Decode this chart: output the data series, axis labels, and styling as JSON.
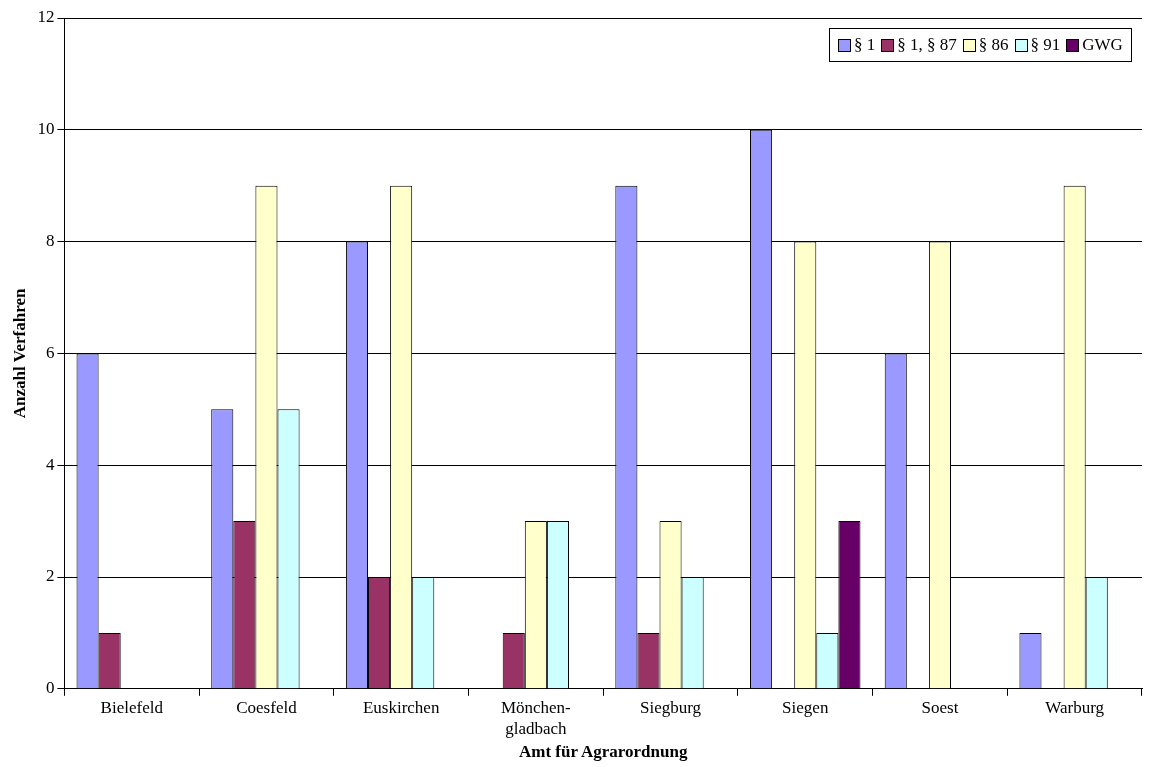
{
  "chart_data": {
    "type": "bar",
    "xlabel": "Amt für Agrarordnung",
    "ylabel": "Anzahl Verfahren",
    "categories": [
      "Bielefeld",
      "Coesfeld",
      "Euskirchen",
      "Mönchen-\ngladbach",
      "Siegburg",
      "Siegen",
      "Soest",
      "Warburg"
    ],
    "series": [
      {
        "name": "§ 1",
        "color": "#9999ff",
        "values": [
          6,
          5,
          8,
          null,
          9,
          10,
          6,
          1
        ]
      },
      {
        "name": "§ 1, § 87",
        "color": "#993366",
        "values": [
          1,
          3,
          2,
          1,
          1,
          null,
          null,
          null
        ]
      },
      {
        "name": "§ 86",
        "color": "#ffffcc",
        "values": [
          null,
          9,
          9,
          3,
          3,
          8,
          8,
          9
        ]
      },
      {
        "name": "§ 91",
        "color": "#ccffff",
        "values": [
          null,
          5,
          2,
          3,
          2,
          1,
          null,
          2
        ]
      },
      {
        "name": "GWG",
        "color": "#660066",
        "values": [
          null,
          null,
          null,
          null,
          null,
          3,
          null,
          null
        ]
      }
    ],
    "ylim": [
      0,
      12
    ],
    "yticks": [
      0,
      2,
      4,
      6,
      8,
      10,
      12
    ],
    "grid": "y",
    "legend": "top right"
  }
}
